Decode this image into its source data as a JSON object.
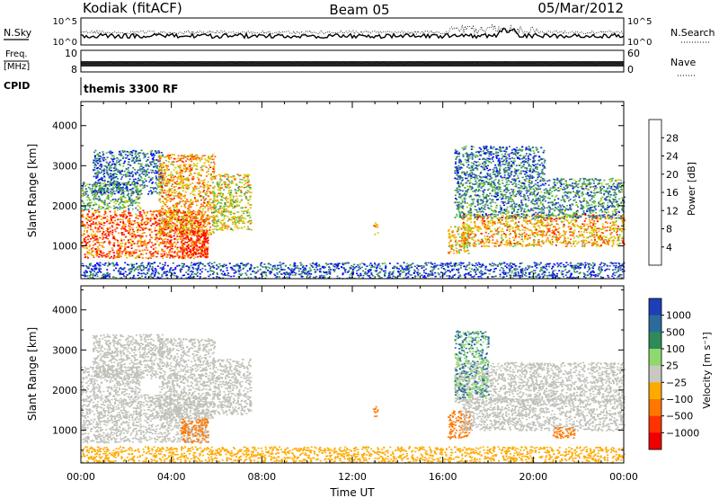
{
  "header": {
    "station": "Kodiak (fitACF)",
    "beam": "Beam 05",
    "date": "05/Mar/2012"
  },
  "top_panels": {
    "nsky_label": "N.Sky",
    "nsearch_label": "N.Search",
    "nsky_ticks": [
      "10^5",
      "10^0"
    ],
    "nsearch_ticks": [
      "10^5",
      "10^0"
    ],
    "freq_label": "Freq.",
    "freq_unit": "[MHz]",
    "freq_ticks": [
      "10",
      "8"
    ],
    "nave_label": "Nave",
    "nave_ticks": [
      "60",
      "0"
    ],
    "cpid_label": "CPID",
    "cpid_value": "themis 3300 RF"
  },
  "colors": {
    "power_scale": [
      "#0000ff",
      "#2b55b5",
      "#2e8b57",
      "#5fbf50",
      "#c8d400",
      "#ffa500",
      "#ff5500",
      "#ff0000"
    ],
    "velocity_scale": [
      "#1c3fb8",
      "#2a6b9c",
      "#2e8b57",
      "#8fd86e",
      "#c8c8c0",
      "#ffaa00",
      "#ff7700",
      "#ff3300",
      "#ee0000"
    ],
    "ground_scatter": "#c0c0b8"
  },
  "chart_data": [
    {
      "type": "heatmap",
      "name": "power",
      "xlabel": "Time UT",
      "ylabel": "Slant Range [km]",
      "x_ticks": [
        "00:00",
        "04:00",
        "08:00",
        "12:00",
        "16:00",
        "20:00",
        "00:00"
      ],
      "xlim": [
        0,
        24
      ],
      "ylim": [
        180,
        4600
      ],
      "y_ticks": [
        1000,
        2000,
        3000,
        4000
      ],
      "colorbar": {
        "label": "Power [dB]",
        "ticks": [
          28,
          24,
          20,
          16,
          12,
          8,
          4
        ],
        "range": [
          0,
          32
        ]
      },
      "regions": [
        {
          "t0": 0.0,
          "t1": 5.6,
          "r0": 700,
          "r1": 1900,
          "value": 26
        },
        {
          "t0": 0.0,
          "t1": 2.6,
          "r0": 1900,
          "r1": 2600,
          "value": 12
        },
        {
          "t0": 0.5,
          "t1": 3.6,
          "r0": 2300,
          "r1": 3400,
          "value": 8
        },
        {
          "t0": 3.4,
          "t1": 5.9,
          "r0": 1300,
          "r1": 3300,
          "value": 22
        },
        {
          "t0": 5.8,
          "t1": 7.5,
          "r0": 1400,
          "r1": 2800,
          "value": 18
        },
        {
          "t0": 4.4,
          "t1": 5.6,
          "r0": 700,
          "r1": 1400,
          "value": 30
        },
        {
          "t0": 12.9,
          "t1": 13.1,
          "r0": 1300,
          "r1": 1600,
          "value": 24
        },
        {
          "t0": 16.2,
          "t1": 17.2,
          "r0": 800,
          "r1": 1500,
          "value": 20
        },
        {
          "t0": 16.8,
          "t1": 24.0,
          "r0": 1000,
          "r1": 1800,
          "value": 22
        },
        {
          "t0": 16.5,
          "t1": 24.0,
          "r0": 1700,
          "r1": 2700,
          "value": 10
        },
        {
          "t0": 16.5,
          "t1": 20.5,
          "r0": 2700,
          "r1": 3500,
          "value": 8
        },
        {
          "t0": 0.0,
          "t1": 24.0,
          "r0": 200,
          "r1": 600,
          "value": 6
        }
      ]
    },
    {
      "type": "heatmap",
      "name": "velocity",
      "xlabel": "Time UT",
      "ylabel": "Slant Range [km]",
      "x_ticks": [
        "00:00",
        "04:00",
        "08:00",
        "12:00",
        "16:00",
        "20:00",
        "00:00"
      ],
      "xlim": [
        0,
        24
      ],
      "ylim": [
        180,
        4600
      ],
      "y_ticks": [
        1000,
        2000,
        3000,
        4000
      ],
      "colorbar": {
        "label": "Velocity [m s⁻¹]",
        "ticks": [
          "1000",
          "500",
          "100",
          "25",
          "−25",
          "−100",
          "−500",
          "−1000"
        ]
      },
      "regions": [
        {
          "t0": 0.0,
          "t1": 5.6,
          "r0": 700,
          "r1": 1900,
          "value": 0
        },
        {
          "t0": 0.0,
          "t1": 2.6,
          "r0": 1900,
          "r1": 2600,
          "value": 0
        },
        {
          "t0": 0.5,
          "t1": 3.6,
          "r0": 2300,
          "r1": 3400,
          "value": 0
        },
        {
          "t0": 3.4,
          "t1": 5.9,
          "r0": 1300,
          "r1": 3300,
          "value": 0
        },
        {
          "t0": 5.8,
          "t1": 7.5,
          "r0": 1400,
          "r1": 2800,
          "value": 0
        },
        {
          "t0": 4.4,
          "t1": 5.6,
          "r0": 700,
          "r1": 1300,
          "value": -200
        },
        {
          "t0": 12.9,
          "t1": 13.1,
          "r0": 1300,
          "r1": 1600,
          "value": -300
        },
        {
          "t0": 16.2,
          "t1": 17.2,
          "r0": 800,
          "r1": 1500,
          "value": -400
        },
        {
          "t0": 16.8,
          "t1": 24.0,
          "r0": 1000,
          "r1": 1800,
          "value": 0
        },
        {
          "t0": 16.5,
          "t1": 24.0,
          "r0": 1700,
          "r1": 2700,
          "value": 0
        },
        {
          "t0": 16.5,
          "t1": 18.0,
          "r0": 1800,
          "r1": 3500,
          "value": 100
        },
        {
          "t0": 20.8,
          "t1": 21.8,
          "r0": 800,
          "r1": 1100,
          "value": -300
        },
        {
          "t0": 0.0,
          "t1": 24.0,
          "r0": 200,
          "r1": 600,
          "value": -50
        }
      ]
    }
  ]
}
